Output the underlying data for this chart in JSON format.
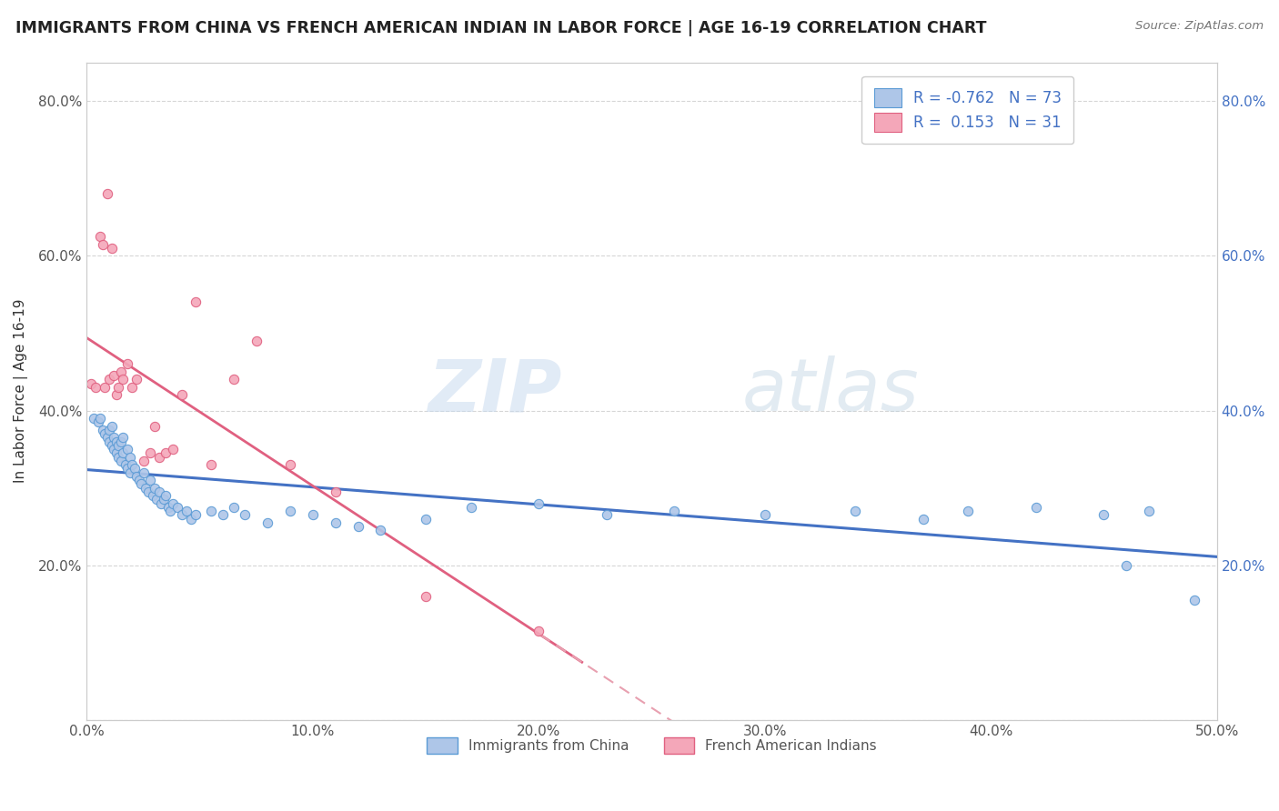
{
  "title": "IMMIGRANTS FROM CHINA VS FRENCH AMERICAN INDIAN IN LABOR FORCE | AGE 16-19 CORRELATION CHART",
  "source_text": "Source: ZipAtlas.com",
  "ylabel": "In Labor Force | Age 16-19",
  "xlim": [
    0.0,
    0.5
  ],
  "ylim": [
    0.0,
    0.85
  ],
  "x_ticks": [
    0.0,
    0.1,
    0.2,
    0.3,
    0.4,
    0.5
  ],
  "x_tick_labels": [
    "0.0%",
    "10.0%",
    "20.0%",
    "30.0%",
    "40.0%",
    "50.0%"
  ],
  "y_ticks": [
    0.0,
    0.2,
    0.4,
    0.6,
    0.8
  ],
  "y_tick_labels": [
    "",
    "20.0%",
    "40.0%",
    "60.0%",
    "80.0%"
  ],
  "china_color": "#aec6e8",
  "china_edge_color": "#5b9bd5",
  "french_color": "#f4a7b9",
  "french_edge_color": "#e06080",
  "china_trend_color": "#4472c4",
  "french_trend_color": "#e06080",
  "french_trend_dash_color": "#e8a0b0",
  "R_china": -0.762,
  "N_china": 73,
  "R_french": 0.153,
  "N_french": 31,
  "watermark_zip": "ZIP",
  "watermark_atlas": "atlas",
  "china_points_x": [
    0.003,
    0.005,
    0.006,
    0.007,
    0.008,
    0.009,
    0.01,
    0.01,
    0.011,
    0.011,
    0.012,
    0.012,
    0.013,
    0.013,
    0.014,
    0.014,
    0.015,
    0.015,
    0.016,
    0.016,
    0.017,
    0.018,
    0.018,
    0.019,
    0.019,
    0.02,
    0.021,
    0.022,
    0.023,
    0.024,
    0.025,
    0.026,
    0.027,
    0.028,
    0.029,
    0.03,
    0.031,
    0.032,
    0.033,
    0.034,
    0.035,
    0.036,
    0.037,
    0.038,
    0.04,
    0.042,
    0.044,
    0.046,
    0.048,
    0.055,
    0.06,
    0.065,
    0.07,
    0.08,
    0.09,
    0.1,
    0.11,
    0.12,
    0.13,
    0.15,
    0.17,
    0.2,
    0.23,
    0.26,
    0.3,
    0.34,
    0.37,
    0.39,
    0.42,
    0.45,
    0.46,
    0.47,
    0.49
  ],
  "china_points_y": [
    0.39,
    0.385,
    0.39,
    0.375,
    0.37,
    0.365,
    0.375,
    0.36,
    0.38,
    0.355,
    0.365,
    0.35,
    0.36,
    0.345,
    0.355,
    0.34,
    0.36,
    0.335,
    0.345,
    0.365,
    0.33,
    0.35,
    0.325,
    0.34,
    0.32,
    0.33,
    0.325,
    0.315,
    0.31,
    0.305,
    0.32,
    0.3,
    0.295,
    0.31,
    0.29,
    0.3,
    0.285,
    0.295,
    0.28,
    0.285,
    0.29,
    0.275,
    0.27,
    0.28,
    0.275,
    0.265,
    0.27,
    0.26,
    0.265,
    0.27,
    0.265,
    0.275,
    0.265,
    0.255,
    0.27,
    0.265,
    0.255,
    0.25,
    0.245,
    0.26,
    0.275,
    0.28,
    0.265,
    0.27,
    0.265,
    0.27,
    0.26,
    0.27,
    0.275,
    0.265,
    0.2,
    0.27,
    0.155
  ],
  "french_points_x": [
    0.002,
    0.004,
    0.006,
    0.007,
    0.008,
    0.009,
    0.01,
    0.011,
    0.012,
    0.013,
    0.014,
    0.015,
    0.016,
    0.018,
    0.02,
    0.022,
    0.025,
    0.028,
    0.03,
    0.032,
    0.035,
    0.038,
    0.042,
    0.048,
    0.055,
    0.065,
    0.075,
    0.09,
    0.11,
    0.15,
    0.2
  ],
  "french_points_y": [
    0.435,
    0.43,
    0.625,
    0.615,
    0.43,
    0.68,
    0.44,
    0.61,
    0.445,
    0.42,
    0.43,
    0.45,
    0.44,
    0.46,
    0.43,
    0.44,
    0.335,
    0.345,
    0.38,
    0.34,
    0.345,
    0.35,
    0.42,
    0.54,
    0.33,
    0.44,
    0.49,
    0.33,
    0.295,
    0.16,
    0.115
  ]
}
